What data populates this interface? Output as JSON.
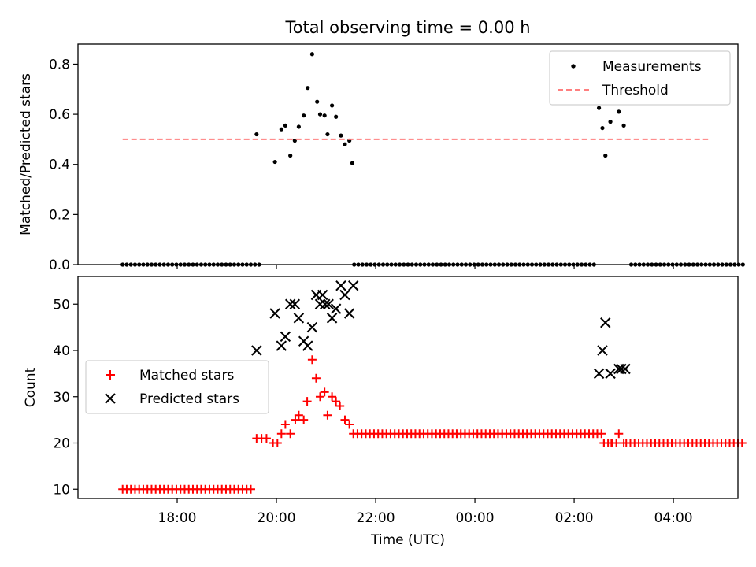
{
  "chart_data": {
    "type": "scatter",
    "title": "Total observing time = 0.00 h",
    "xlabel": "Time (UTC)",
    "x_ticks": [
      "18:00",
      "20:00",
      "22:00",
      "00:00",
      "02:00",
      "04:00"
    ],
    "x_tick_hours": [
      18,
      20,
      22,
      24,
      26,
      28
    ],
    "xlim_hours": [
      16.0,
      29.3
    ],
    "panels": [
      {
        "ylabel": "Matched/Predicted stars",
        "ylim": [
          0,
          0.88
        ],
        "y_ticks": [
          "0.0",
          "0.2",
          "0.4",
          "0.6",
          "0.8"
        ],
        "y_tick_values": [
          0,
          0.2,
          0.4,
          0.6,
          0.8
        ],
        "legend_position": "upper-right",
        "series": [
          {
            "name": "Measurements",
            "marker": "dot",
            "color": "#000000",
            "points_hours": [
              [
                19.6,
                0.52
              ],
              [
                19.97,
                0.41
              ],
              [
                20.1,
                0.54
              ],
              [
                20.18,
                0.555
              ],
              [
                20.28,
                0.435
              ],
              [
                20.37,
                0.495
              ],
              [
                20.45,
                0.55
              ],
              [
                20.55,
                0.595
              ],
              [
                20.63,
                0.705
              ],
              [
                20.72,
                0.84
              ],
              [
                20.82,
                0.65
              ],
              [
                20.88,
                0.6
              ],
              [
                20.97,
                0.595
              ],
              [
                21.03,
                0.52
              ],
              [
                21.12,
                0.635
              ],
              [
                21.2,
                0.59
              ],
              [
                21.3,
                0.515
              ],
              [
                21.38,
                0.48
              ],
              [
                21.47,
                0.495
              ],
              [
                21.53,
                0.405
              ],
              [
                26.5,
                0.625
              ],
              [
                26.57,
                0.545
              ],
              [
                26.63,
                0.435
              ],
              [
                26.73,
                0.57
              ],
              [
                26.9,
                0.61
              ],
              [
                27.0,
                0.555
              ]
            ],
            "zero_points": {
              "from_hours": 16.9,
              "to_hours": 29.4,
              "step_minutes": 5,
              "gaps_hours": [
                [
                  19.65,
                  20.0
                ],
                [
                  20.02,
                  21.55
                ],
                [
                  26.45,
                  26.75
                ],
                [
                  26.78,
                  27.07
                ]
              ]
            }
          },
          {
            "name": "Threshold",
            "line": "dashed",
            "color": "#ff7f7f",
            "value": 0.5,
            "from_hours": 16.9,
            "to_hours": 28.7
          }
        ]
      },
      {
        "ylabel": "Count",
        "ylim": [
          8,
          56
        ],
        "y_ticks": [
          "10",
          "20",
          "30",
          "40",
          "50"
        ],
        "y_tick_values": [
          10,
          20,
          30,
          40,
          50
        ],
        "legend_position": "center-left",
        "series": [
          {
            "name": "Matched stars",
            "marker": "plus",
            "color": "#ff0000",
            "points_hours": [
              [
                19.6,
                21
              ],
              [
                19.7,
                21
              ],
              [
                19.8,
                21
              ],
              [
                19.93,
                20
              ],
              [
                20.02,
                20
              ],
              [
                20.1,
                22
              ],
              [
                20.18,
                24
              ],
              [
                20.28,
                22
              ],
              [
                20.38,
                25
              ],
              [
                20.45,
                26
              ],
              [
                20.55,
                25
              ],
              [
                20.62,
                29
              ],
              [
                20.72,
                38
              ],
              [
                20.8,
                34
              ],
              [
                20.88,
                30
              ],
              [
                20.97,
                31
              ],
              [
                21.03,
                26
              ],
              [
                21.12,
                30
              ],
              [
                21.2,
                29
              ],
              [
                21.28,
                28
              ],
              [
                21.38,
                25
              ],
              [
                21.47,
                24
              ],
              [
                26.6,
                20
              ],
              [
                26.75,
                20
              ],
              [
                26.9,
                22
              ],
              [
                27.0,
                20
              ]
            ],
            "baseline_runs": [
              {
                "from_hours": 16.9,
                "to_hours": 19.55,
                "step_minutes": 5,
                "value": 10
              },
              {
                "from_hours": 21.55,
                "to_hours": 26.55,
                "step_minutes": 5,
                "value": 22
              },
              {
                "from_hours": 26.6,
                "to_hours": 26.85,
                "step_minutes": 5,
                "value": 20
              },
              {
                "from_hours": 27.05,
                "to_hours": 29.4,
                "step_minutes": 5,
                "value": 20
              }
            ]
          },
          {
            "name": "Predicted stars",
            "marker": "x",
            "color": "#000000",
            "points_hours": [
              [
                19.6,
                40
              ],
              [
                19.97,
                48
              ],
              [
                20.1,
                41
              ],
              [
                20.18,
                43
              ],
              [
                20.28,
                50
              ],
              [
                20.37,
                50
              ],
              [
                20.45,
                47
              ],
              [
                20.55,
                42
              ],
              [
                20.63,
                41
              ],
              [
                20.72,
                45
              ],
              [
                20.8,
                52
              ],
              [
                20.88,
                50
              ],
              [
                20.93,
                52
              ],
              [
                20.98,
                50
              ],
              [
                21.05,
                50
              ],
              [
                21.12,
                47
              ],
              [
                21.2,
                49
              ],
              [
                21.3,
                54
              ],
              [
                21.38,
                52
              ],
              [
                21.47,
                48
              ],
              [
                21.55,
                54
              ],
              [
                26.5,
                35
              ],
              [
                26.57,
                40
              ],
              [
                26.63,
                46
              ],
              [
                26.73,
                35
              ],
              [
                26.9,
                36
              ],
              [
                26.95,
                36
              ],
              [
                27.03,
                36
              ]
            ]
          }
        ]
      }
    ]
  }
}
